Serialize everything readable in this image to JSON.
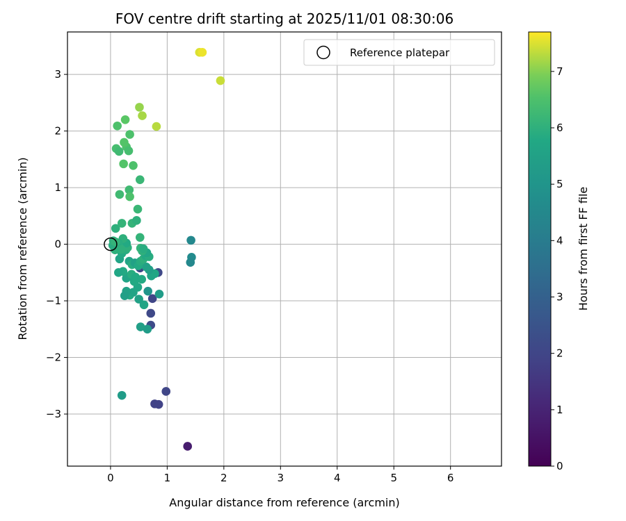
{
  "chart_data": {
    "type": "scatter",
    "title": "FOV centre drift starting at 2025/11/01 08:30:06",
    "xlabel": "Angular distance from reference (arcmin)",
    "ylabel": "Rotation from reference (arcmin)",
    "xlim": [
      -0.76,
      6.9
    ],
    "ylim": [
      -3.92,
      3.75
    ],
    "xticks": [
      0,
      1,
      2,
      3,
      4,
      5,
      6
    ],
    "yticks": [
      -3,
      -2,
      -1,
      0,
      1,
      2,
      3
    ],
    "xtick_labels": [
      "0",
      "1",
      "2",
      "3",
      "4",
      "5",
      "6"
    ],
    "ytick_labels": [
      "−3",
      "−2",
      "−1",
      "0",
      "1",
      "2",
      "3"
    ],
    "grid": true,
    "legend": {
      "position": "top-right",
      "label": "Reference platepar"
    },
    "reference_point": {
      "x": 0,
      "y": 0
    },
    "colorbar": {
      "label": "Hours from first FF file",
      "colormap": "viridis",
      "range": [
        0,
        7.7
      ],
      "ticks": [
        0,
        1,
        2,
        3,
        4,
        5,
        6,
        7
      ],
      "tick_labels": [
        "0",
        "1",
        "2",
        "3",
        "4",
        "5",
        "6",
        "7"
      ]
    },
    "points": [
      {
        "x": 1.36,
        "y": -3.57,
        "t": 0.8
      },
      {
        "x": 0.85,
        "y": -2.83,
        "t": 1.9
      },
      {
        "x": 0.78,
        "y": -2.82,
        "t": 1.9
      },
      {
        "x": 0.98,
        "y": -2.6,
        "t": 2.0
      },
      {
        "x": 0.71,
        "y": -1.22,
        "t": 2.1
      },
      {
        "x": 0.71,
        "y": -1.43,
        "t": 2.2
      },
      {
        "x": 0.74,
        "y": -0.96,
        "t": 2.0
      },
      {
        "x": 0.84,
        "y": -0.5,
        "t": 2.1
      },
      {
        "x": 0.52,
        "y": -0.42,
        "t": 2.0
      },
      {
        "x": 1.42,
        "y": 0.07,
        "t": 4.5
      },
      {
        "x": 1.43,
        "y": -0.23,
        "t": 4.6
      },
      {
        "x": 1.41,
        "y": -0.32,
        "t": 4.5
      },
      {
        "x": 0.65,
        "y": -1.5,
        "t": 5.3
      },
      {
        "x": 0.53,
        "y": -1.46,
        "t": 5.4
      },
      {
        "x": 0.2,
        "y": -2.67,
        "t": 5.3
      },
      {
        "x": 0.66,
        "y": -0.83,
        "t": 5.0
      },
      {
        "x": 0.86,
        "y": -0.88,
        "t": 5.3
      },
      {
        "x": 0.59,
        "y": -1.07,
        "t": 5.6
      },
      {
        "x": 0.5,
        "y": -0.97,
        "t": 5.5
      },
      {
        "x": 0.34,
        "y": -0.9,
        "t": 5.8
      },
      {
        "x": 0.4,
        "y": -0.85,
        "t": 5.6
      },
      {
        "x": 0.28,
        "y": -0.83,
        "t": 5.5
      },
      {
        "x": 0.25,
        "y": -0.91,
        "t": 5.4
      },
      {
        "x": 0.48,
        "y": -0.76,
        "t": 5.7
      },
      {
        "x": 0.42,
        "y": -0.66,
        "t": 5.8
      },
      {
        "x": 0.32,
        "y": -0.57,
        "t": 5.7
      },
      {
        "x": 0.28,
        "y": -0.6,
        "t": 5.6
      },
      {
        "x": 0.37,
        "y": -0.53,
        "t": 5.9
      },
      {
        "x": 0.44,
        "y": -0.58,
        "t": 5.8
      },
      {
        "x": 0.55,
        "y": -0.62,
        "t": 5.8
      },
      {
        "x": 0.72,
        "y": -0.56,
        "t": 5.6
      },
      {
        "x": 0.78,
        "y": -0.52,
        "t": 5.7
      },
      {
        "x": 0.68,
        "y": -0.45,
        "t": 5.4
      },
      {
        "x": 0.63,
        "y": -0.4,
        "t": 5.5
      },
      {
        "x": 0.22,
        "y": -0.48,
        "t": 5.8
      },
      {
        "x": 0.14,
        "y": -0.5,
        "t": 5.7
      },
      {
        "x": 0.33,
        "y": -0.3,
        "t": 5.6
      },
      {
        "x": 0.38,
        "y": -0.36,
        "t": 5.9
      },
      {
        "x": 0.43,
        "y": -0.33,
        "t": 5.5
      },
      {
        "x": 0.49,
        "y": -0.38,
        "t": 5.8
      },
      {
        "x": 0.53,
        "y": -0.3,
        "t": 5.9
      },
      {
        "x": 0.58,
        "y": -0.26,
        "t": 6.0
      },
      {
        "x": 0.62,
        "y": -0.2,
        "t": 5.8
      },
      {
        "x": 0.68,
        "y": -0.22,
        "t": 5.9
      },
      {
        "x": 0.64,
        "y": -0.15,
        "t": 5.7
      },
      {
        "x": 0.56,
        "y": -0.12,
        "t": 6.0
      },
      {
        "x": 0.53,
        "y": -0.07,
        "t": 6.1
      },
      {
        "x": 0.58,
        "y": -0.08,
        "t": 5.9
      },
      {
        "x": 0.52,
        "y": 0.12,
        "t": 6.1
      },
      {
        "x": 0.16,
        "y": -0.26,
        "t": 5.6
      },
      {
        "x": 0.2,
        "y": -0.16,
        "t": 5.8
      },
      {
        "x": 0.27,
        "y": -0.1,
        "t": 5.9
      },
      {
        "x": 0.3,
        "y": -0.06,
        "t": 6.0
      },
      {
        "x": 0.28,
        "y": 0.02,
        "t": 5.8
      },
      {
        "x": 0.22,
        "y": 0.1,
        "t": 6.0
      },
      {
        "x": 0.14,
        "y": 0.02,
        "t": 5.9
      },
      {
        "x": 0.11,
        "y": -0.05,
        "t": 5.8
      },
      {
        "x": 0.08,
        "y": -0.1,
        "t": 6.0
      },
      {
        "x": 0.04,
        "y": -0.02,
        "t": 5.9
      },
      {
        "x": 0.05,
        "y": 0.06,
        "t": 6.0
      },
      {
        "x": 0.09,
        "y": 0.04,
        "t": 6.1
      },
      {
        "x": 0.19,
        "y": -0.09,
        "t": 6.0
      },
      {
        "x": 0.09,
        "y": 0.28,
        "t": 6.0
      },
      {
        "x": 0.2,
        "y": 0.37,
        "t": 6.1
      },
      {
        "x": 0.38,
        "y": 0.37,
        "t": 6.1
      },
      {
        "x": 0.46,
        "y": 0.42,
        "t": 6.0
      },
      {
        "x": 0.48,
        "y": 0.62,
        "t": 6.2
      },
      {
        "x": 0.16,
        "y": 0.88,
        "t": 6.3
      },
      {
        "x": 0.33,
        "y": 0.96,
        "t": 6.3
      },
      {
        "x": 0.34,
        "y": 0.84,
        "t": 6.5
      },
      {
        "x": 0.52,
        "y": 1.14,
        "t": 6.2
      },
      {
        "x": 0.4,
        "y": 1.39,
        "t": 6.5
      },
      {
        "x": 0.23,
        "y": 1.42,
        "t": 6.6
      },
      {
        "x": 0.1,
        "y": 1.69,
        "t": 6.4
      },
      {
        "x": 0.15,
        "y": 1.64,
        "t": 6.3
      },
      {
        "x": 0.28,
        "y": 1.72,
        "t": 6.5
      },
      {
        "x": 0.32,
        "y": 1.65,
        "t": 6.4
      },
      {
        "x": 0.24,
        "y": 1.8,
        "t": 6.6
      },
      {
        "x": 0.34,
        "y": 1.94,
        "t": 6.5
      },
      {
        "x": 0.12,
        "y": 2.09,
        "t": 6.5
      },
      {
        "x": 0.26,
        "y": 2.2,
        "t": 6.7
      },
      {
        "x": 0.51,
        "y": 2.42,
        "t": 7.1
      },
      {
        "x": 0.56,
        "y": 2.27,
        "t": 7.2
      },
      {
        "x": 0.81,
        "y": 2.08,
        "t": 7.3
      },
      {
        "x": 1.57,
        "y": 3.39,
        "t": 7.5
      },
      {
        "x": 1.62,
        "y": 3.39,
        "t": 7.6
      },
      {
        "x": 1.94,
        "y": 2.89,
        "t": 7.4
      }
    ]
  }
}
